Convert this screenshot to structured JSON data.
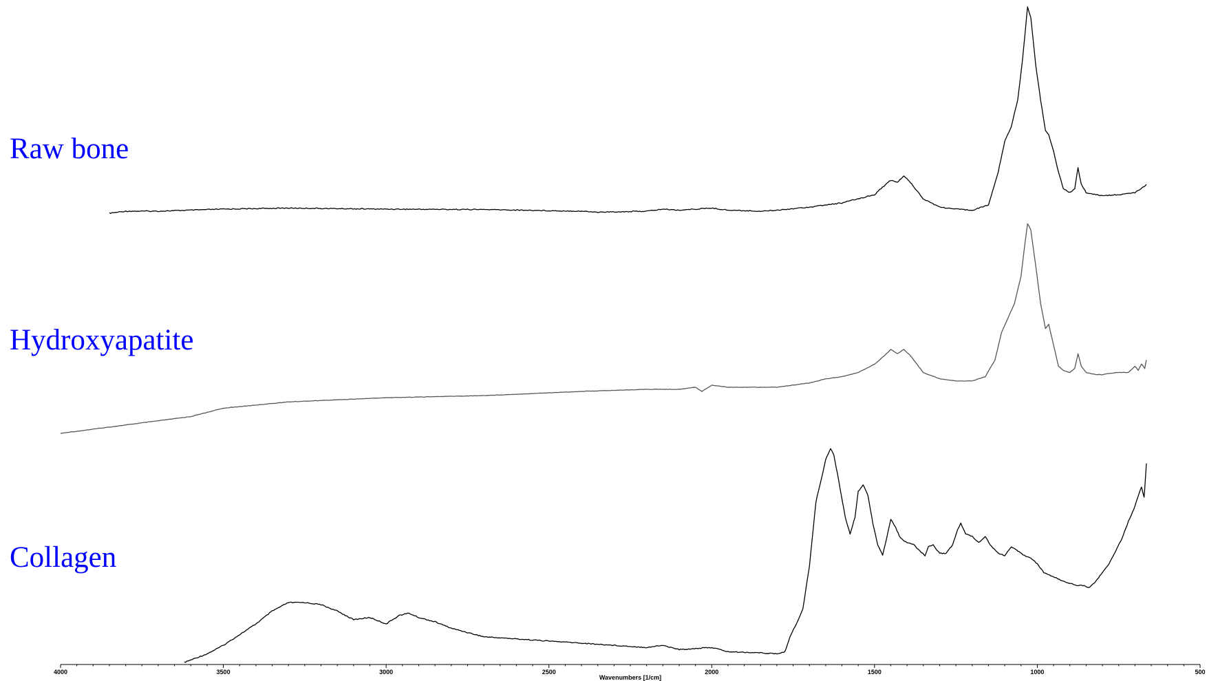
{
  "chart_data": {
    "type": "line",
    "title": "",
    "xlabel": "Wavenumbers [1/cm]",
    "ylabel": "",
    "xlim": [
      4000,
      500
    ],
    "x_reversed": true,
    "grid": false,
    "xticks": [
      4000,
      3500,
      3000,
      2500,
      2000,
      1500,
      1000,
      500
    ],
    "label_color": "#0000ff",
    "series": [
      {
        "name": "Raw bone",
        "color": "#000000",
        "points": [
          [
            3850,
            0.0
          ],
          [
            3800,
            0.01
          ],
          [
            3700,
            0.01
          ],
          [
            3600,
            0.015
          ],
          [
            3500,
            0.02
          ],
          [
            3300,
            0.025
          ],
          [
            3000,
            0.02
          ],
          [
            2700,
            0.018
          ],
          [
            2400,
            0.01
          ],
          [
            2350,
            0.005
          ],
          [
            2200,
            0.01
          ],
          [
            2150,
            0.02
          ],
          [
            2100,
            0.015
          ],
          [
            2000,
            0.025
          ],
          [
            1950,
            0.015
          ],
          [
            1850,
            0.01
          ],
          [
            1800,
            0.015
          ],
          [
            1700,
            0.03
          ],
          [
            1650,
            0.04
          ],
          [
            1600,
            0.05
          ],
          [
            1550,
            0.07
          ],
          [
            1500,
            0.09
          ],
          [
            1480,
            0.12
          ],
          [
            1450,
            0.16
          ],
          [
            1430,
            0.15
          ],
          [
            1410,
            0.18
          ],
          [
            1390,
            0.15
          ],
          [
            1350,
            0.07
          ],
          [
            1300,
            0.03
          ],
          [
            1250,
            0.02
          ],
          [
            1200,
            0.015
          ],
          [
            1150,
            0.04
          ],
          [
            1120,
            0.2
          ],
          [
            1100,
            0.35
          ],
          [
            1080,
            0.42
          ],
          [
            1060,
            0.55
          ],
          [
            1045,
            0.75
          ],
          [
            1030,
            1.0
          ],
          [
            1020,
            0.95
          ],
          [
            1005,
            0.72
          ],
          [
            990,
            0.55
          ],
          [
            975,
            0.4
          ],
          [
            965,
            0.38
          ],
          [
            950,
            0.3
          ],
          [
            935,
            0.2
          ],
          [
            920,
            0.12
          ],
          [
            900,
            0.1
          ],
          [
            885,
            0.12
          ],
          [
            875,
            0.22
          ],
          [
            865,
            0.14
          ],
          [
            850,
            0.1
          ],
          [
            820,
            0.09
          ],
          [
            800,
            0.085
          ],
          [
            750,
            0.09
          ],
          [
            700,
            0.1
          ],
          [
            680,
            0.12
          ],
          [
            665,
            0.14
          ]
        ]
      },
      {
        "name": "Hydroxyapatite",
        "color": "#555555",
        "points": [
          [
            4000,
            0.0
          ],
          [
            3800,
            0.04
          ],
          [
            3600,
            0.08
          ],
          [
            3500,
            0.12
          ],
          [
            3300,
            0.15
          ],
          [
            3000,
            0.17
          ],
          [
            2700,
            0.18
          ],
          [
            2400,
            0.2
          ],
          [
            2200,
            0.21
          ],
          [
            2100,
            0.21
          ],
          [
            2050,
            0.22
          ],
          [
            2030,
            0.2
          ],
          [
            2000,
            0.23
          ],
          [
            1950,
            0.22
          ],
          [
            1900,
            0.22
          ],
          [
            1800,
            0.22
          ],
          [
            1700,
            0.24
          ],
          [
            1650,
            0.26
          ],
          [
            1600,
            0.27
          ],
          [
            1550,
            0.29
          ],
          [
            1500,
            0.33
          ],
          [
            1470,
            0.37
          ],
          [
            1450,
            0.4
          ],
          [
            1430,
            0.38
          ],
          [
            1410,
            0.4
          ],
          [
            1390,
            0.37
          ],
          [
            1350,
            0.29
          ],
          [
            1300,
            0.26
          ],
          [
            1250,
            0.25
          ],
          [
            1200,
            0.25
          ],
          [
            1160,
            0.27
          ],
          [
            1130,
            0.35
          ],
          [
            1110,
            0.48
          ],
          [
            1090,
            0.55
          ],
          [
            1070,
            0.62
          ],
          [
            1050,
            0.75
          ],
          [
            1040,
            0.88
          ],
          [
            1030,
            1.0
          ],
          [
            1020,
            0.97
          ],
          [
            1005,
            0.8
          ],
          [
            990,
            0.62
          ],
          [
            975,
            0.5
          ],
          [
            965,
            0.52
          ],
          [
            950,
            0.42
          ],
          [
            935,
            0.32
          ],
          [
            920,
            0.3
          ],
          [
            900,
            0.29
          ],
          [
            885,
            0.31
          ],
          [
            875,
            0.38
          ],
          [
            865,
            0.32
          ],
          [
            850,
            0.29
          ],
          [
            820,
            0.28
          ],
          [
            800,
            0.28
          ],
          [
            760,
            0.29
          ],
          [
            720,
            0.29
          ],
          [
            700,
            0.32
          ],
          [
            690,
            0.3
          ],
          [
            680,
            0.33
          ],
          [
            670,
            0.31
          ],
          [
            665,
            0.35
          ]
        ]
      },
      {
        "name": "Collagen",
        "color": "#000000",
        "points": [
          [
            3620,
            0.0
          ],
          [
            3550,
            0.04
          ],
          [
            3500,
            0.08
          ],
          [
            3450,
            0.13
          ],
          [
            3400,
            0.18
          ],
          [
            3350,
            0.24
          ],
          [
            3300,
            0.28
          ],
          [
            3250,
            0.28
          ],
          [
            3200,
            0.27
          ],
          [
            3150,
            0.24
          ],
          [
            3100,
            0.2
          ],
          [
            3050,
            0.21
          ],
          [
            3000,
            0.18
          ],
          [
            2960,
            0.22
          ],
          [
            2930,
            0.23
          ],
          [
            2900,
            0.21
          ],
          [
            2850,
            0.19
          ],
          [
            2800,
            0.16
          ],
          [
            2700,
            0.12
          ],
          [
            2600,
            0.11
          ],
          [
            2500,
            0.1
          ],
          [
            2400,
            0.09
          ],
          [
            2300,
            0.08
          ],
          [
            2200,
            0.07
          ],
          [
            2150,
            0.08
          ],
          [
            2100,
            0.06
          ],
          [
            2000,
            0.07
          ],
          [
            1950,
            0.05
          ],
          [
            1850,
            0.045
          ],
          [
            1800,
            0.04
          ],
          [
            1775,
            0.05
          ],
          [
            1760,
            0.12
          ],
          [
            1740,
            0.18
          ],
          [
            1720,
            0.25
          ],
          [
            1700,
            0.45
          ],
          [
            1680,
            0.75
          ],
          [
            1660,
            0.88
          ],
          [
            1650,
            0.95
          ],
          [
            1635,
            1.0
          ],
          [
            1625,
            0.97
          ],
          [
            1610,
            0.85
          ],
          [
            1590,
            0.68
          ],
          [
            1575,
            0.6
          ],
          [
            1560,
            0.68
          ],
          [
            1550,
            0.8
          ],
          [
            1535,
            0.83
          ],
          [
            1520,
            0.78
          ],
          [
            1505,
            0.65
          ],
          [
            1490,
            0.55
          ],
          [
            1475,
            0.5
          ],
          [
            1460,
            0.6
          ],
          [
            1450,
            0.67
          ],
          [
            1435,
            0.63
          ],
          [
            1420,
            0.58
          ],
          [
            1400,
            0.56
          ],
          [
            1380,
            0.55
          ],
          [
            1360,
            0.52
          ],
          [
            1345,
            0.5
          ],
          [
            1335,
            0.54
          ],
          [
            1320,
            0.55
          ],
          [
            1300,
            0.51
          ],
          [
            1280,
            0.51
          ],
          [
            1260,
            0.55
          ],
          [
            1245,
            0.62
          ],
          [
            1235,
            0.65
          ],
          [
            1220,
            0.6
          ],
          [
            1200,
            0.59
          ],
          [
            1180,
            0.56
          ],
          [
            1160,
            0.59
          ],
          [
            1145,
            0.55
          ],
          [
            1120,
            0.51
          ],
          [
            1100,
            0.5
          ],
          [
            1080,
            0.54
          ],
          [
            1060,
            0.52
          ],
          [
            1040,
            0.5
          ],
          [
            1020,
            0.49
          ],
          [
            1000,
            0.46
          ],
          [
            980,
            0.42
          ],
          [
            950,
            0.4
          ],
          [
            920,
            0.38
          ],
          [
            900,
            0.37
          ],
          [
            880,
            0.36
          ],
          [
            860,
            0.36
          ],
          [
            840,
            0.35
          ],
          [
            820,
            0.38
          ],
          [
            800,
            0.42
          ],
          [
            780,
            0.46
          ],
          [
            760,
            0.52
          ],
          [
            740,
            0.58
          ],
          [
            720,
            0.66
          ],
          [
            700,
            0.73
          ],
          [
            690,
            0.78
          ],
          [
            680,
            0.82
          ],
          [
            672,
            0.77
          ],
          [
            668,
            0.86
          ],
          [
            665,
            0.93
          ]
        ]
      }
    ]
  }
}
